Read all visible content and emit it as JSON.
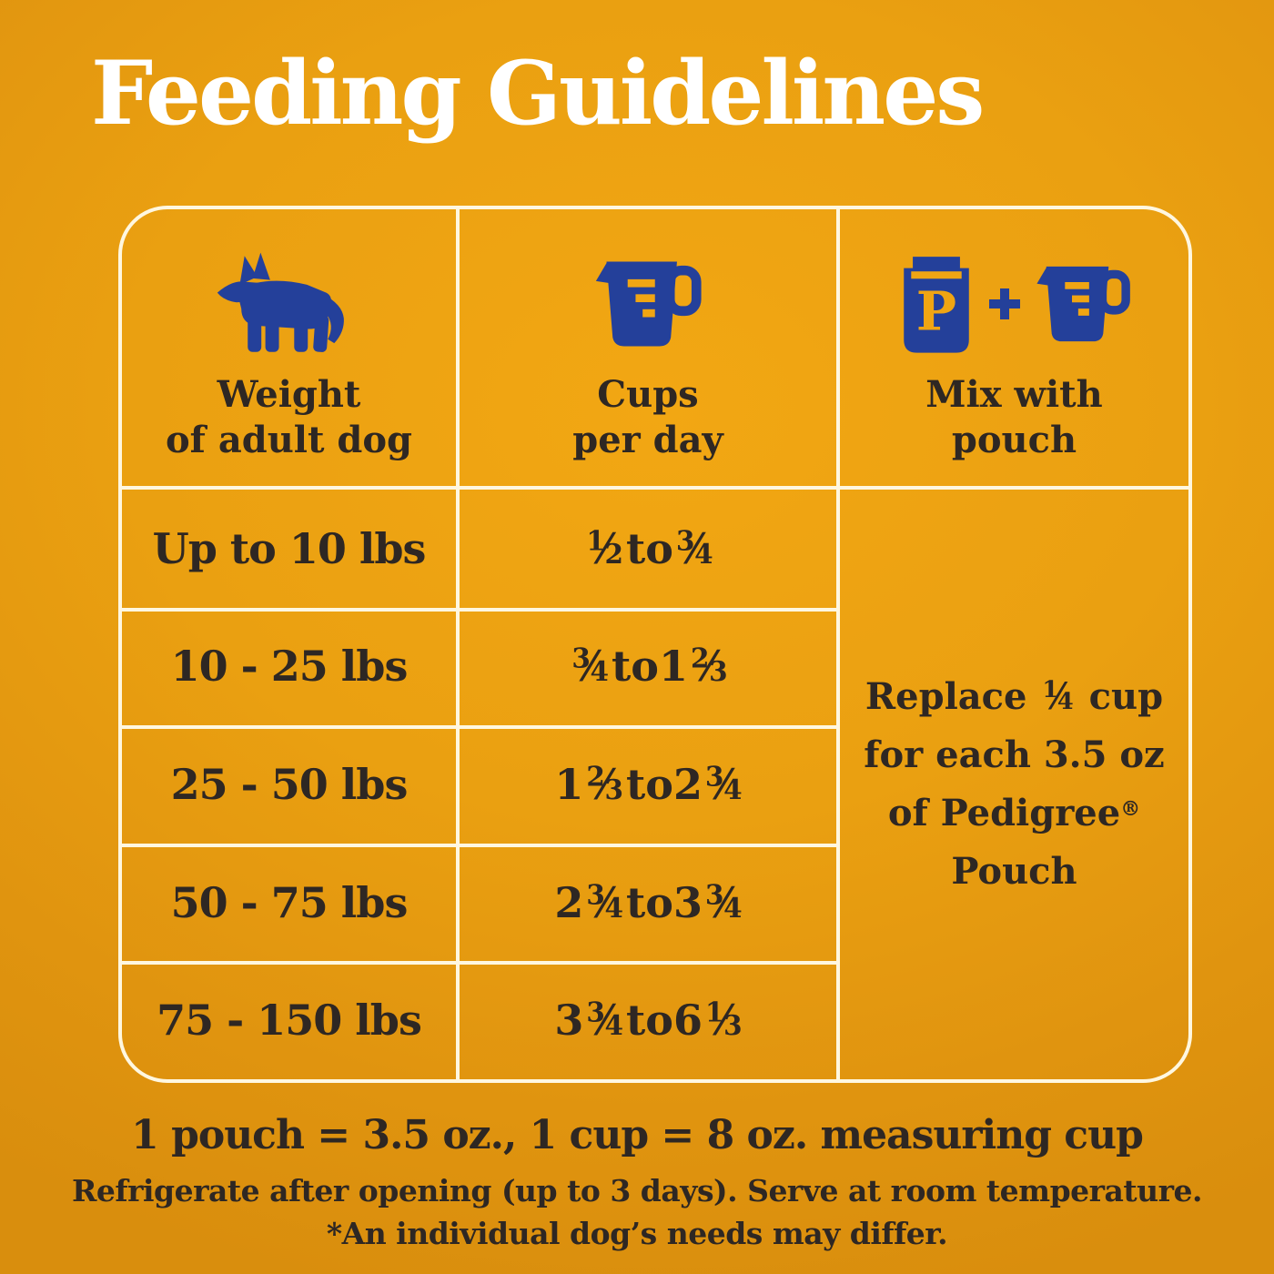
{
  "page": {
    "title": "Feeding Guidelines"
  },
  "colors": {
    "background_orange": "#EDA211",
    "grid_line_cream": "#FFF7E0",
    "icon_blue": "#24409A",
    "icon_yellow": "#F0A513",
    "text_dark": "#2E2723",
    "title_white": "#FFFFFF"
  },
  "table": {
    "columns": [
      {
        "icon": "dog-icon",
        "label_lines": [
          "Weight",
          "of adult dog"
        ]
      },
      {
        "icon": "measuring-cup-icon",
        "label_lines": [
          "Cups",
          "per day"
        ]
      },
      {
        "icon": "pouch-plus-cup-icon",
        "label_lines": [
          "Mix with",
          "pouch"
        ]
      }
    ],
    "rows": [
      {
        "weight": "Up to 10 lbs",
        "cups": [
          {
            "f": [
              "1",
              "2"
            ]
          },
          {
            "t": " to "
          },
          {
            "f": [
              "3",
              "4"
            ]
          }
        ]
      },
      {
        "weight": "10 - 25 lbs",
        "cups": [
          {
            "f": [
              "3",
              "4"
            ]
          },
          {
            "t": " to "
          },
          {
            "t": "1"
          },
          {
            "f": [
              "2",
              "3"
            ]
          }
        ]
      },
      {
        "weight": "25 - 50 lbs",
        "cups": [
          {
            "t": "1"
          },
          {
            "f": [
              "2",
              "3"
            ]
          },
          {
            "t": " to "
          },
          {
            "t": "2"
          },
          {
            "f": [
              "3",
              "4"
            ]
          }
        ]
      },
      {
        "weight": "50 - 75 lbs",
        "cups": [
          {
            "t": "2"
          },
          {
            "f": [
              "3",
              "4"
            ]
          },
          {
            "t": "  to "
          },
          {
            "t": "3"
          },
          {
            "f": [
              "3",
              "4"
            ]
          }
        ]
      },
      {
        "weight": "75 - 150 lbs",
        "cups": [
          {
            "t": "3"
          },
          {
            "f": [
              "3",
              "4"
            ]
          },
          {
            "t": " to "
          },
          {
            "t": "6"
          },
          {
            "f": [
              "1",
              "3"
            ]
          }
        ]
      }
    ],
    "mix_note_lines": [
      [
        {
          "t": "Replace "
        },
        {
          "f": [
            "1",
            "4"
          ]
        },
        {
          "t": " cup"
        }
      ],
      [
        {
          "t": "for each 3.5 oz"
        }
      ],
      [
        {
          "t": "of Pedigree"
        },
        {
          "sup": "®"
        }
      ],
      [
        {
          "t": "Pouch"
        }
      ]
    ],
    "pouch_letter": "P",
    "plus_sign": "+"
  },
  "footer": {
    "equivalence": "1 pouch = 3.5 oz., 1 cup = 8 oz. measuring cup",
    "note1": "Refrigerate after opening (up to 3 days). Serve at room temperature.",
    "note2": "*An individual dog’s needs may differ."
  }
}
